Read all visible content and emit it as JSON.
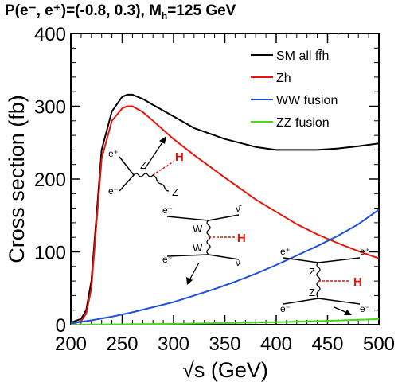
{
  "chart_data": {
    "type": "line",
    "title": "P(e⁻, e⁺)=(-0.8, 0.3), M",
    "title_sub": "h",
    "title_tail": "=125 GeV",
    "xlabel": "√s (GeV)",
    "ylabel": "Cross section (fb)",
    "xlim": [
      200,
      500
    ],
    "ylim": [
      0,
      400
    ],
    "xticks": [
      "200",
      "250",
      "300",
      "350",
      "400",
      "450",
      "500"
    ],
    "yticks": [
      "0",
      "100",
      "200",
      "300",
      "400"
    ],
    "grid": false,
    "legend_position": "top-right",
    "series": [
      {
        "name": "SM all ff̄h",
        "color": "#000000",
        "x": [
          200,
          210,
          215,
          220,
          225,
          230,
          240,
          250,
          255,
          260,
          270,
          280,
          300,
          320,
          350,
          380,
          400,
          420,
          440,
          460,
          480,
          500
        ],
        "y": [
          3,
          8,
          20,
          60,
          150,
          240,
          293,
          313,
          316,
          316,
          310,
          302,
          286,
          270,
          255,
          244,
          240,
          240,
          240,
          242,
          245,
          249
        ]
      },
      {
        "name": "Zh",
        "color": "#e8140c",
        "x": [
          200,
          210,
          215,
          220,
          225,
          230,
          240,
          250,
          255,
          260,
          270,
          280,
          300,
          320,
          350,
          380,
          400,
          420,
          440,
          460,
          480,
          500
        ],
        "y": [
          0,
          5,
          15,
          50,
          140,
          228,
          280,
          297,
          300,
          300,
          292,
          280,
          255,
          233,
          202,
          172,
          155,
          138,
          124,
          112,
          101,
          91
        ]
      },
      {
        "name": "WW fusion",
        "color": "#1e50dc",
        "x": [
          200,
          220,
          240,
          260,
          280,
          300,
          320,
          340,
          360,
          380,
          400,
          420,
          440,
          460,
          480,
          500
        ],
        "y": [
          2,
          6,
          11,
          17,
          24,
          31,
          40,
          49,
          59,
          70,
          82,
          95,
          108,
          122,
          138,
          158
        ]
      },
      {
        "name": "ZZ fusion",
        "color": "#46dc14",
        "x": [
          200,
          250,
          300,
          350,
          400,
          450,
          500
        ],
        "y": [
          0,
          0.5,
          1.2,
          2.2,
          3.6,
          5.4,
          7.8
        ]
      }
    ],
    "diagram_labels": {
      "zh": {
        "in_top": "e⁺",
        "in_bottom": "e⁻",
        "boson": "Z",
        "higgs": "H",
        "out_boson": "Z"
      },
      "ww": {
        "in_top": "e⁺",
        "in_bottom": "e⁻",
        "out_top": "ν̄",
        "out_bottom": "ν",
        "boson_top": "W",
        "boson_bottom": "W",
        "higgs": "H"
      },
      "zz": {
        "in_top": "e⁺",
        "in_bottom": "e⁻",
        "out_top": "e⁺",
        "out_bottom": "e⁻",
        "boson_top": "Z",
        "boson_bottom": "Z",
        "higgs": "H"
      }
    },
    "colors": {
      "higgs_line": "#e8140c",
      "axis": "#000000"
    }
  }
}
